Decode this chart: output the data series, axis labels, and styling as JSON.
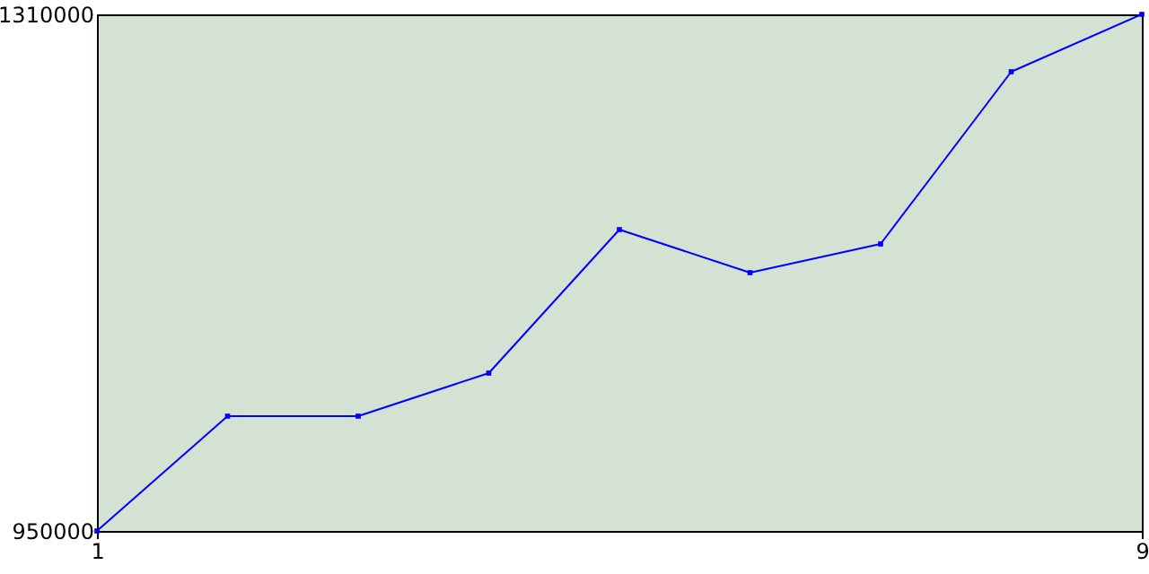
{
  "chart_data": {
    "type": "line",
    "x": [
      1,
      2,
      3,
      4,
      5,
      6,
      7,
      8,
      9
    ],
    "series": [
      {
        "color": "#0000ff",
        "values": [
          950000,
          1030000,
          1030000,
          1060000,
          1160000,
          1130000,
          1150000,
          1270000,
          1310000
        ]
      }
    ],
    "xlim": [
      1,
      9
    ],
    "xticks": [
      1,
      9
    ],
    "ylim": [
      950000,
      1310000
    ],
    "yticks": [
      950000,
      1310000
    ],
    "marker": "square",
    "grid": false
  }
}
